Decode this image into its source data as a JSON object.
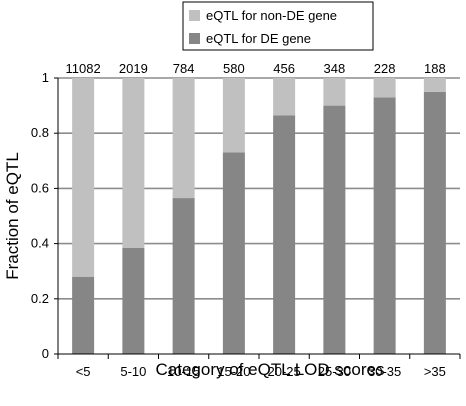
{
  "chart_data": {
    "type": "bar",
    "stacked": true,
    "categories": [
      "<5",
      "5-10",
      "10-15",
      "15-20",
      "20-25",
      "25-30",
      "30-35",
      ">35"
    ],
    "counts": [
      "11082",
      "2019",
      "784",
      "580",
      "456",
      "348",
      "228",
      "188"
    ],
    "series": [
      {
        "name": "eQTL for DE gene",
        "values": [
          0.28,
          0.385,
          0.565,
          0.73,
          0.865,
          0.9,
          0.93,
          0.95
        ],
        "color": "#868686"
      },
      {
        "name": "eQTL for non-DE gene",
        "values": [
          0.72,
          0.615,
          0.435,
          0.27,
          0.135,
          0.1,
          0.07,
          0.05
        ],
        "color": "#c0c0c0"
      }
    ],
    "xlabel": "Category of eQTL LOD scores",
    "ylabel": "Fraction of eQTL",
    "ylim": [
      0,
      1
    ],
    "yticks": [
      "0",
      "0.2",
      "0.4",
      "0.6",
      "0.8",
      "1"
    ],
    "grid": true,
    "legend_position": "top"
  }
}
